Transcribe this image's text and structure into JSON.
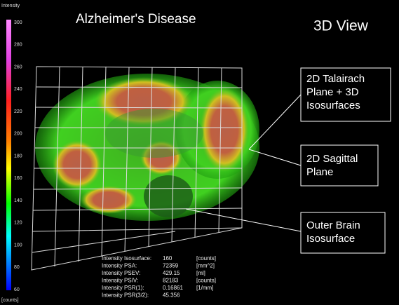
{
  "colorbar": {
    "title": "Intensity",
    "unit": "[counts]",
    "ticks": [
      300,
      280,
      260,
      240,
      220,
      200,
      180,
      160,
      140,
      120,
      100,
      80,
      60
    ]
  },
  "header": {
    "title": "Alzheimer's Disease",
    "view": "3D View"
  },
  "callouts": [
    {
      "label": "2D Talairach Plane + 3D Isosurfaces"
    },
    {
      "label": "2D Sagittal Plane"
    },
    {
      "label": "Outer Brain Isosurface"
    }
  ],
  "stats": {
    "rows": [
      [
        "Intensity Isosurface:",
        160,
        "[counts]"
      ],
      [
        "Intensity PSA:",
        72359,
        "[mm^2]"
      ],
      [
        "Intensity PSEV:",
        429.15,
        "[ml]"
      ],
      [
        "Intensity PSIV:",
        82183,
        "[counts]"
      ],
      [
        "Intensity PSR(1):",
        0.16861,
        "[1/mm]"
      ],
      [
        "Intensity PSR(3/2):",
        45.356
      ]
    ]
  }
}
